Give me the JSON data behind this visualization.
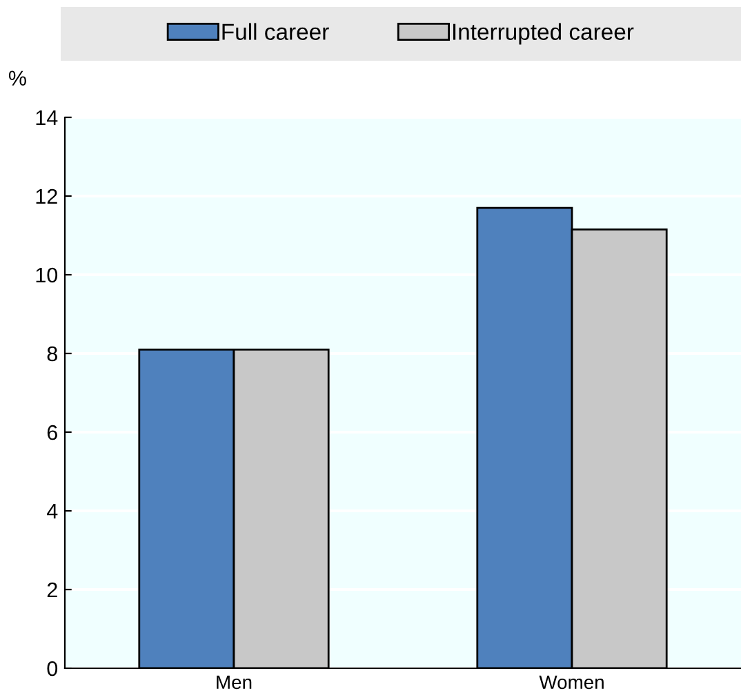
{
  "chart_data": {
    "type": "bar",
    "ylabel": "%",
    "categories": [
      "Men",
      "Women"
    ],
    "series": [
      {
        "name": "Full career",
        "color": "#4f81bd",
        "values": [
          8.1,
          11.7
        ]
      },
      {
        "name": "Interrupted career",
        "color": "#c8c8c8",
        "values": [
          8.1,
          11.15
        ]
      }
    ],
    "ylim": [
      0,
      14
    ],
    "yticks": [
      0,
      2,
      4,
      6,
      8,
      10,
      12,
      14
    ],
    "grid": "y",
    "legend": "top"
  }
}
